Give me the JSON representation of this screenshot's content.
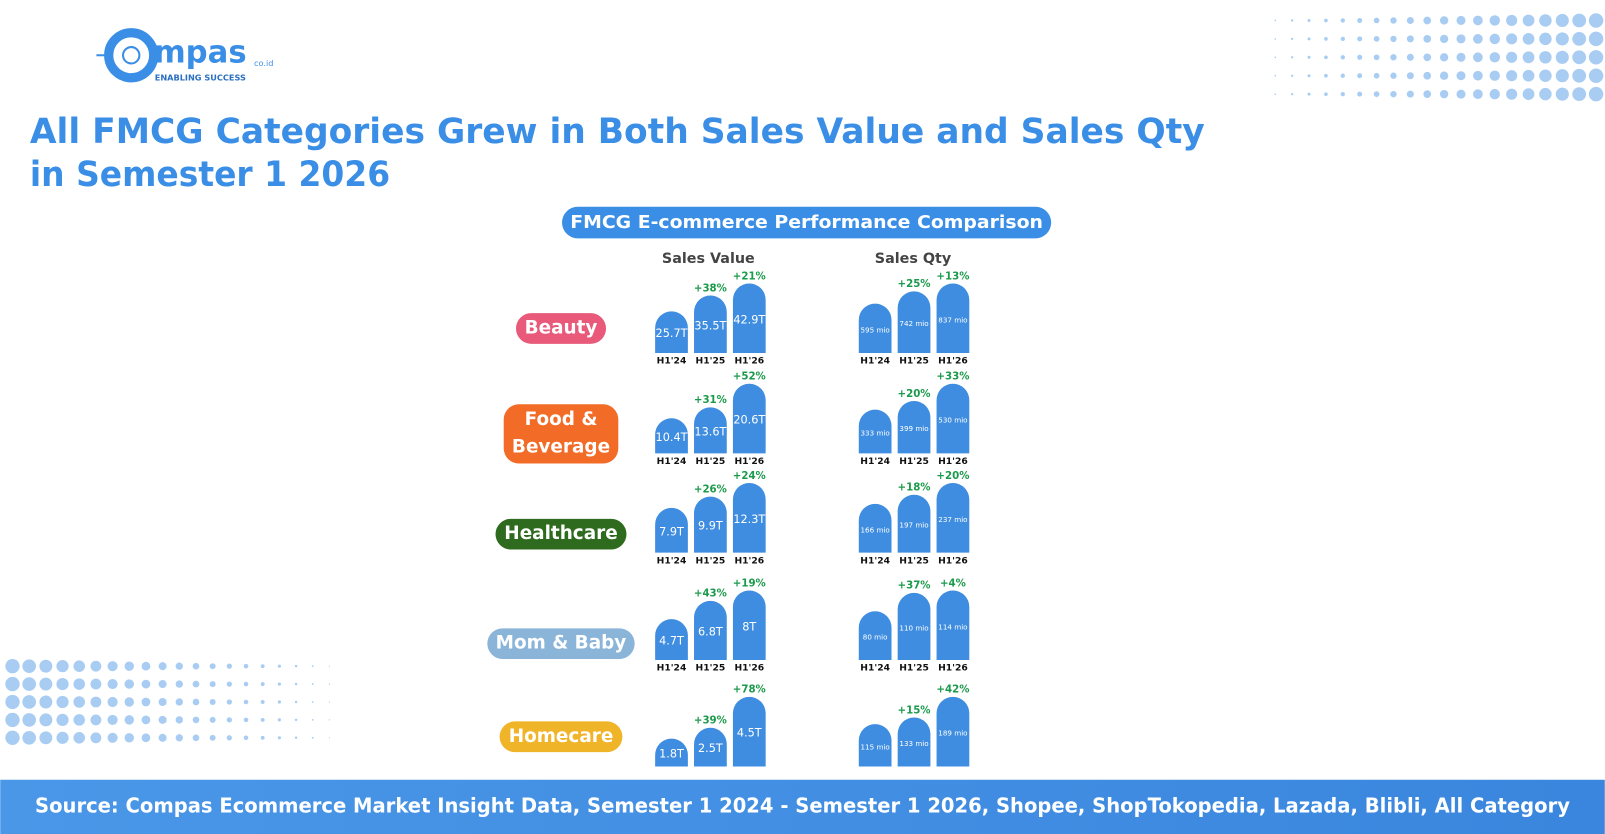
{
  "header": {
    "logo_text": "mpas",
    "logo_suffix": "co.id",
    "tagline": "ENABLING SUCCESS",
    "title_lines": [
      "All FMCG Categories Grew in Both Sales Value and Sales Qty",
      "in Semester 1 2026"
    ]
  },
  "panel_title": "FMCG E-commerce Performance Comparison",
  "columns": [
    "Sales Value",
    "Sales Qty"
  ],
  "row_labels": [
    [
      "Beauty"
    ],
    [
      "Food &",
      "Beverage"
    ],
    [
      "Healthcare"
    ],
    [
      "Mom & Baby"
    ],
    [
      "Homecare"
    ]
  ],
  "chart_data": [
    {
      "type": "bar",
      "categories": [
        "H1'24",
        "H1'25",
        "H1'26"
      ],
      "values": [
        25.7,
        35.5,
        42.9
      ],
      "value_labels": [
        "25.7T",
        "35.5T",
        "42.9T"
      ],
      "growth_labels": [
        "+38%",
        "+21%"
      ],
      "color": "#3f8de0"
    },
    {
      "type": "bar",
      "categories": [
        "H1'24",
        "H1'25",
        "H1'26"
      ],
      "values": [
        595,
        742,
        837
      ],
      "value_labels": [
        "595 mio",
        "742 mio",
        "837 mio"
      ],
      "growth_labels": [
        "+25%",
        "+13%"
      ],
      "color": "#3f8de0"
    },
    {
      "type": "bar",
      "categories": [
        "H1'24",
        "H1'25",
        "H1'26"
      ],
      "values": [
        10.4,
        13.6,
        20.6
      ],
      "value_labels": [
        "10.4T",
        "13.6T",
        "20.6T"
      ],
      "growth_labels": [
        "+31%",
        "+52%"
      ],
      "color": "#3f8de0"
    },
    {
      "type": "bar",
      "categories": [
        "H1'24",
        "H1'25",
        "H1'26"
      ],
      "values": [
        333,
        399,
        530
      ],
      "value_labels": [
        "333 mio",
        "399 mio",
        "530 mio"
      ],
      "growth_labels": [
        "+20%",
        "+33%"
      ],
      "color": "#3f8de0"
    },
    {
      "type": "bar",
      "categories": [
        "H1'24",
        "H1'25",
        "H1'26"
      ],
      "values": [
        7.9,
        9.9,
        12.3
      ],
      "value_labels": [
        "7.9T",
        "9.9T",
        "12.3T"
      ],
      "growth_labels": [
        "+26%",
        "+24%"
      ],
      "color": "#3f8de0"
    },
    {
      "type": "bar",
      "categories": [
        "H1'24",
        "H1'25",
        "H1'26"
      ],
      "values": [
        166,
        197,
        237
      ],
      "value_labels": [
        "166 mio",
        "197 mio",
        "237 mio"
      ],
      "growth_labels": [
        "+18%",
        "+20%"
      ],
      "color": "#3f8de0"
    },
    {
      "type": "bar",
      "categories": [
        "H1'24",
        "H1'25",
        "H1'26"
      ],
      "values": [
        4.7,
        6.8,
        8
      ],
      "value_labels": [
        "4.7T",
        "6.8T",
        "8T"
      ],
      "growth_labels": [
        "+43%",
        "+19%"
      ],
      "color": "#3f8de0"
    },
    {
      "type": "bar",
      "categories": [
        "H1'24",
        "H1'25",
        "H1'26"
      ],
      "values": [
        80,
        110,
        114
      ],
      "value_labels": [
        "80 mio",
        "110 mio",
        "114 mio"
      ],
      "growth_labels": [
        "+37%",
        "+4%"
      ],
      "color": "#3f8de0"
    },
    {
      "type": "bar",
      "categories": [
        null,
        null,
        null
      ],
      "values": [
        1.8,
        2.5,
        4.5
      ],
      "value_labels": [
        "1.8T",
        "2.5T",
        "4.5T"
      ],
      "growth_labels": [
        "+39%",
        "+78%"
      ],
      "color": "#3f8de0"
    },
    {
      "type": "bar",
      "categories": [
        null,
        null,
        null
      ],
      "values": [
        115,
        133,
        189
      ],
      "value_labels": [
        "115 mio",
        "133 mio",
        "189 mio"
      ],
      "growth_labels": [
        "+15%",
        "+42%"
      ],
      "color": "#3f8de0"
    }
  ],
  "footer": "Source: Compas Ecommerce Market Insight Data, Semester 1 2024 - Semester 1 2026, Shopee, ShopTokopedia, Lazada, Blibli, All Category"
}
